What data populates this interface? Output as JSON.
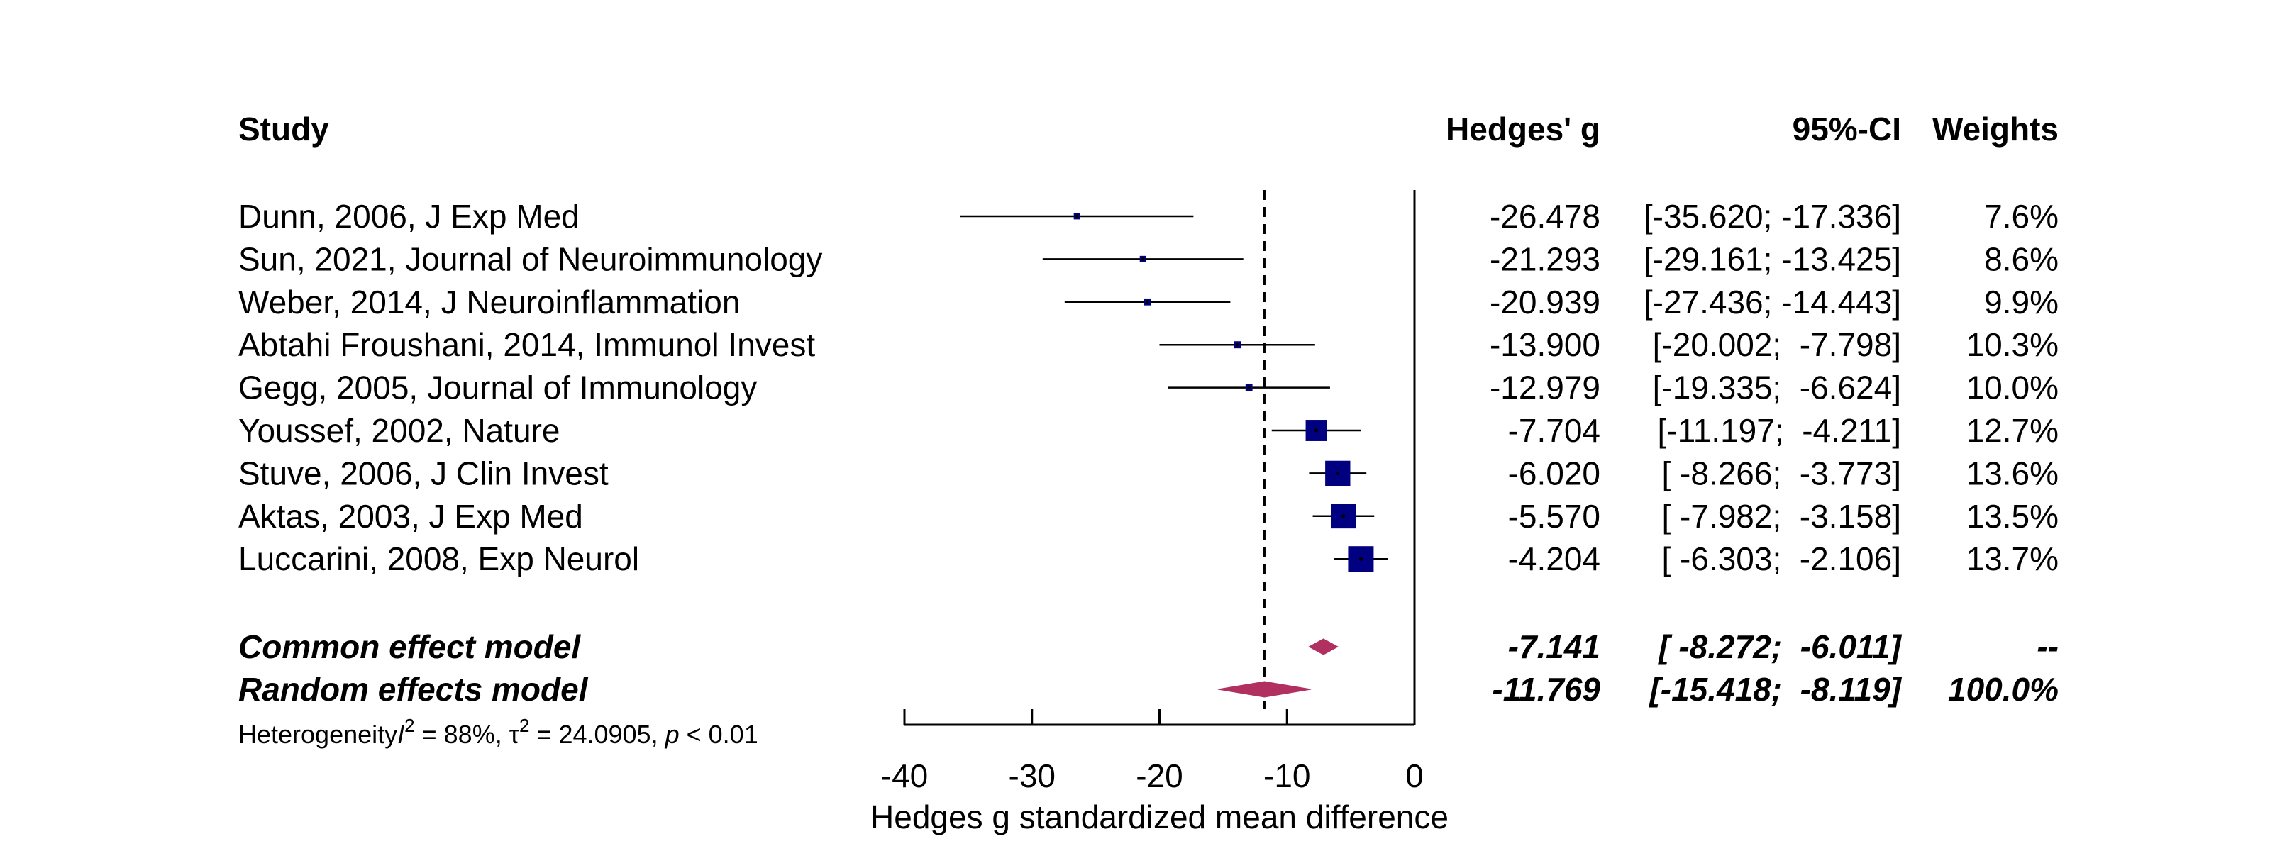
{
  "chart_data": {
    "type": "forest",
    "columns": {
      "study": "Study",
      "effect": "Hedges' g",
      "ci": "95%-CI",
      "weight": "Weights"
    },
    "studies": [
      {
        "label": "Dunn, 2006, J Exp Med",
        "g": -26.478,
        "lower": -35.62,
        "upper": -17.336,
        "weight": 7.6,
        "g_text": "-26.478",
        "ci_text": "[-35.620; -17.336]",
        "weight_text": "7.6%"
      },
      {
        "label": "Sun, 2021, Journal of Neuroimmunology",
        "g": -21.293,
        "lower": -29.161,
        "upper": -13.425,
        "weight": 8.6,
        "g_text": "-21.293",
        "ci_text": "[-29.161; -13.425]",
        "weight_text": "8.6%"
      },
      {
        "label": "Weber, 2014, J Neuroinflammation",
        "g": -20.939,
        "lower": -27.436,
        "upper": -14.443,
        "weight": 9.9,
        "g_text": "-20.939",
        "ci_text": "[-27.436; -14.443]",
        "weight_text": "9.9%"
      },
      {
        "label": "Abtahi Froushani, 2014, Immunol Invest",
        "g": -13.9,
        "lower": -20.002,
        "upper": -7.798,
        "weight": 10.3,
        "g_text": "-13.900",
        "ci_text": "[-20.002;  -7.798]",
        "weight_text": "10.3%"
      },
      {
        "label": "Gegg, 2005, Journal of Immunology",
        "g": -12.979,
        "lower": -19.335,
        "upper": -6.624,
        "weight": 10.0,
        "g_text": "-12.979",
        "ci_text": "[-19.335;  -6.624]",
        "weight_text": "10.0%"
      },
      {
        "label": "Youssef, 2002, Nature",
        "g": -7.704,
        "lower": -11.197,
        "upper": -4.211,
        "weight": 12.7,
        "g_text": "-7.704",
        "ci_text": "[-11.197;  -4.211]",
        "weight_text": "12.7%"
      },
      {
        "label": "Stuve, 2006, J Clin Invest",
        "g": -6.02,
        "lower": -8.266,
        "upper": -3.773,
        "weight": 13.6,
        "g_text": "-6.020",
        "ci_text": "[ -8.266;  -3.773]",
        "weight_text": "13.6%"
      },
      {
        "label": "Aktas, 2003, J Exp Med",
        "g": -5.57,
        "lower": -7.982,
        "upper": -3.158,
        "weight": 13.5,
        "g_text": "-5.570",
        "ci_text": "[ -7.982;  -3.158]",
        "weight_text": "13.5%"
      },
      {
        "label": "Luccarini, 2008, Exp Neurol",
        "g": -4.204,
        "lower": -6.303,
        "upper": -2.106,
        "weight": 13.7,
        "g_text": "-4.204",
        "ci_text": "[ -6.303;  -2.106]",
        "weight_text": "13.7%"
      }
    ],
    "summaries": [
      {
        "label": "Common effect model",
        "g": -7.141,
        "lower": -8.272,
        "upper": -6.011,
        "g_text": "-7.141",
        "ci_text": "[ -8.272;  -6.011]",
        "weight_text": "--"
      },
      {
        "label": "Random effects model",
        "g": -11.769,
        "lower": -15.418,
        "upper": -8.119,
        "g_text": "-11.769",
        "ci_text": "[-15.418;  -8.119]",
        "weight_text": "100.0%"
      }
    ],
    "heterogeneity": {
      "prefix": "Heterogeneity",
      "i2_symbol": "I",
      "i2_value": " = 88%, ",
      "tau_symbol": "τ",
      "tau_value": " = 24.0905, ",
      "p_symbol": "p",
      "p_value": " < 0.01"
    },
    "reference_line": -11.769,
    "xlim": [
      -40,
      0
    ],
    "ticks": [
      -40,
      -30,
      -20,
      -10,
      0
    ],
    "xlabel": "Hedges g standardized mean difference",
    "colors": {
      "square": "#000080",
      "diamond": "#B03060",
      "line": "#000000"
    }
  }
}
